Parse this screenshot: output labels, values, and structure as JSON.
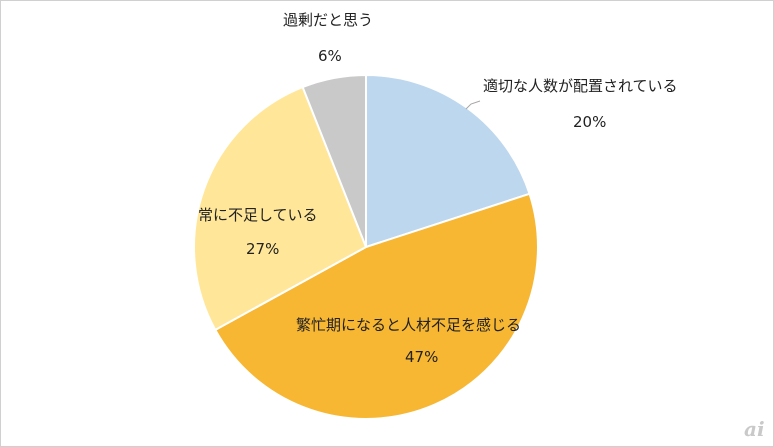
{
  "chart_data": {
    "type": "pie",
    "title": "",
    "slices": [
      {
        "label": "適切な人数が配置されている",
        "percent_label": "20%",
        "value": 20,
        "color": "#BDD7EE"
      },
      {
        "label": "繁忙期になると人材不足を感じる",
        "percent_label": "47%",
        "value": 47,
        "color": "#F7B733"
      },
      {
        "label": "常に不足している",
        "percent_label": "27%",
        "value": 27,
        "color": "#FFE699"
      },
      {
        "label": "過剰だと思う",
        "percent_label": "6%",
        "value": 6,
        "color": "#C9C9C9"
      }
    ],
    "start_angle_deg": 0,
    "direction": "clockwise",
    "legend": "none"
  },
  "watermark": {
    "text": "ai"
  }
}
